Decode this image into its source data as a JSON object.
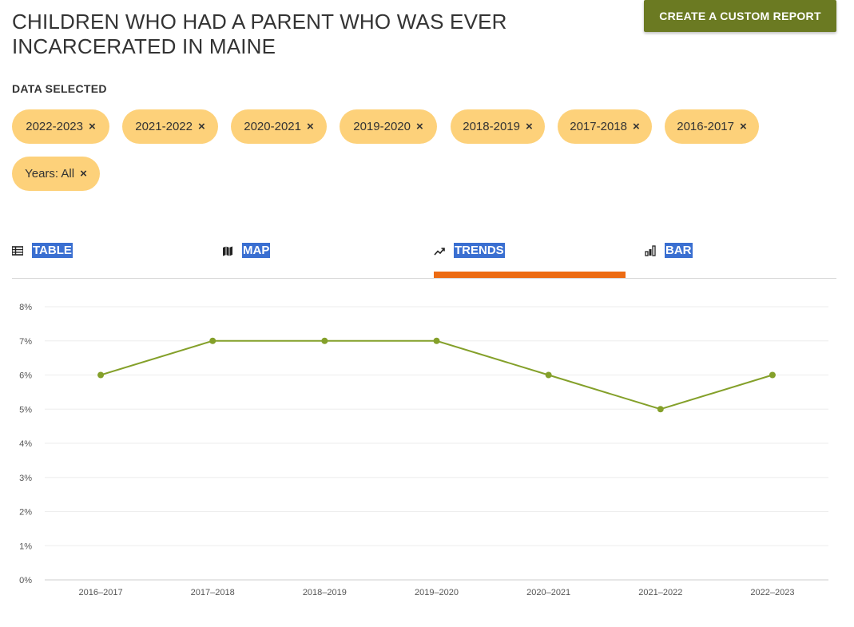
{
  "header": {
    "title": "CHILDREN WHO HAD A PARENT WHO WAS EVER INCARCERATED IN MAINE",
    "cta_label": "CREATE A CUSTOM REPORT"
  },
  "filters": {
    "label": "DATA SELECTED",
    "chips": [
      "2022-2023",
      "2021-2022",
      "2020-2021",
      "2019-2020",
      "2018-2019",
      "2017-2018",
      "2016-2017",
      "Years: All"
    ],
    "remove_glyph": "×",
    "chip_color": "#fdd17a"
  },
  "tabs": [
    {
      "label": "TABLE",
      "icon": "table-icon"
    },
    {
      "label": "MAP",
      "icon": "map-icon"
    },
    {
      "label": "TRENDS",
      "icon": "trend-icon",
      "active": true
    },
    {
      "label": "BAR",
      "icon": "bar-chart-icon"
    }
  ],
  "colors": {
    "accent_button": "#6b7a22",
    "tab_highlight": "#3a6fd1",
    "active_underline": "#ec6b13",
    "series_line": "#84a02a"
  },
  "chart_data": {
    "type": "line",
    "x": [
      "2016–2017",
      "2017–2018",
      "2018–2019",
      "2019–2020",
      "2020–2021",
      "2021–2022",
      "2022–2023"
    ],
    "series": [
      {
        "values": [
          6,
          7,
          7,
          7,
          6,
          5,
          6
        ]
      }
    ],
    "yticks": [
      "0%",
      "1%",
      "2%",
      "3%",
      "4%",
      "5%",
      "6%",
      "7%",
      "8%"
    ],
    "ylim": [
      0,
      8
    ],
    "grid": true,
    "legend": "none"
  }
}
